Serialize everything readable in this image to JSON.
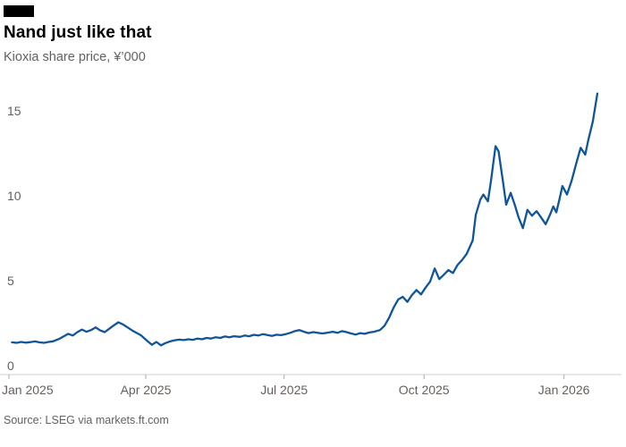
{
  "chart_data": {
    "type": "line",
    "title": "Nand just like that",
    "subtitle": "Kioxia share price, ¥’000",
    "source": "Source: LSEG via markets.ft.com",
    "ylabel": "Share price, ¥’000",
    "ylim": [
      0,
      17.5
    ],
    "y_ticks": [
      0,
      5,
      10,
      15
    ],
    "grid": "off",
    "legend": "none",
    "x_unit": "days since 2025-01-01",
    "x_range_days": [
      0,
      387
    ],
    "x_ticks": [
      {
        "label": "Jan 2025",
        "day": 0
      },
      {
        "label": "Apr 2025",
        "day": 90
      },
      {
        "label": "Jul 2025",
        "day": 181
      },
      {
        "label": "Oct 2025",
        "day": 273
      },
      {
        "label": "Jan 2026",
        "day": 365
      }
    ],
    "series": [
      {
        "name": "Kioxia share price",
        "color": "#10559a",
        "points": [
          [
            2,
            1.9
          ],
          [
            5,
            1.87
          ],
          [
            8,
            1.92
          ],
          [
            11,
            1.88
          ],
          [
            14,
            1.91
          ],
          [
            17,
            1.95
          ],
          [
            20,
            1.9
          ],
          [
            23,
            1.87
          ],
          [
            26,
            1.92
          ],
          [
            29,
            1.96
          ],
          [
            33,
            2.1
          ],
          [
            36,
            2.25
          ],
          [
            39,
            2.4
          ],
          [
            42,
            2.3
          ],
          [
            45,
            2.5
          ],
          [
            48,
            2.65
          ],
          [
            51,
            2.52
          ],
          [
            54,
            2.62
          ],
          [
            57,
            2.78
          ],
          [
            60,
            2.6
          ],
          [
            63,
            2.5
          ],
          [
            66,
            2.7
          ],
          [
            69,
            2.9
          ],
          [
            72,
            3.08
          ],
          [
            75,
            2.95
          ],
          [
            78,
            2.78
          ],
          [
            81,
            2.6
          ],
          [
            84,
            2.45
          ],
          [
            87,
            2.3
          ],
          [
            91,
            1.98
          ],
          [
            94,
            1.76
          ],
          [
            97,
            1.92
          ],
          [
            100,
            1.72
          ],
          [
            103,
            1.86
          ],
          [
            106,
            1.95
          ],
          [
            109,
            2.02
          ],
          [
            112,
            2.06
          ],
          [
            115,
            2.03
          ],
          [
            118,
            2.08
          ],
          [
            121,
            2.05
          ],
          [
            124,
            2.12
          ],
          [
            127,
            2.08
          ],
          [
            130,
            2.16
          ],
          [
            133,
            2.12
          ],
          [
            136,
            2.2
          ],
          [
            139,
            2.16
          ],
          [
            142,
            2.24
          ],
          [
            145,
            2.2
          ],
          [
            148,
            2.26
          ],
          [
            152,
            2.22
          ],
          [
            155,
            2.3
          ],
          [
            158,
            2.26
          ],
          [
            161,
            2.34
          ],
          [
            164,
            2.3
          ],
          [
            167,
            2.38
          ],
          [
            170,
            2.33
          ],
          [
            173,
            2.28
          ],
          [
            176,
            2.35
          ],
          [
            179,
            2.32
          ],
          [
            182,
            2.38
          ],
          [
            185,
            2.46
          ],
          [
            188,
            2.56
          ],
          [
            191,
            2.62
          ],
          [
            194,
            2.52
          ],
          [
            197,
            2.44
          ],
          [
            200,
            2.5
          ],
          [
            203,
            2.46
          ],
          [
            206,
            2.42
          ],
          [
            209,
            2.46
          ],
          [
            213,
            2.52
          ],
          [
            216,
            2.46
          ],
          [
            219,
            2.56
          ],
          [
            222,
            2.5
          ],
          [
            225,
            2.42
          ],
          [
            228,
            2.36
          ],
          [
            231,
            2.44
          ],
          [
            234,
            2.4
          ],
          [
            237,
            2.48
          ],
          [
            240,
            2.52
          ],
          [
            244,
            2.62
          ],
          [
            247,
            2.88
          ],
          [
            250,
            3.35
          ],
          [
            253,
            3.95
          ],
          [
            256,
            4.42
          ],
          [
            259,
            4.58
          ],
          [
            262,
            4.28
          ],
          [
            265,
            4.68
          ],
          [
            268,
            4.98
          ],
          [
            271,
            4.72
          ],
          [
            274,
            5.12
          ],
          [
            277,
            5.48
          ],
          [
            280,
            6.25
          ],
          [
            283,
            5.62
          ],
          [
            286,
            5.88
          ],
          [
            289,
            6.15
          ],
          [
            292,
            5.98
          ],
          [
            295,
            6.45
          ],
          [
            298,
            6.75
          ],
          [
            301,
            7.1
          ],
          [
            305,
            7.9
          ],
          [
            307,
            9.4
          ],
          [
            310,
            10.3
          ],
          [
            312,
            10.6
          ],
          [
            315,
            10.2
          ],
          [
            317,
            11.4
          ],
          [
            320,
            13.45
          ],
          [
            322,
            13.15
          ],
          [
            325,
            11.3
          ],
          [
            327,
            10.0
          ],
          [
            330,
            10.7
          ],
          [
            333,
            9.9
          ],
          [
            335,
            9.3
          ],
          [
            338,
            8.62
          ],
          [
            341,
            9.7
          ],
          [
            344,
            9.35
          ],
          [
            347,
            9.62
          ],
          [
            350,
            9.25
          ],
          [
            353,
            8.85
          ],
          [
            356,
            9.45
          ],
          [
            358,
            9.9
          ],
          [
            360,
            9.55
          ],
          [
            362,
            10.3
          ],
          [
            364,
            11.1
          ],
          [
            367,
            10.6
          ],
          [
            370,
            11.4
          ],
          [
            373,
            12.4
          ],
          [
            376,
            13.35
          ],
          [
            379,
            12.95
          ],
          [
            381,
            13.8
          ],
          [
            384,
            14.9
          ],
          [
            387,
            16.55
          ]
        ]
      }
    ]
  }
}
